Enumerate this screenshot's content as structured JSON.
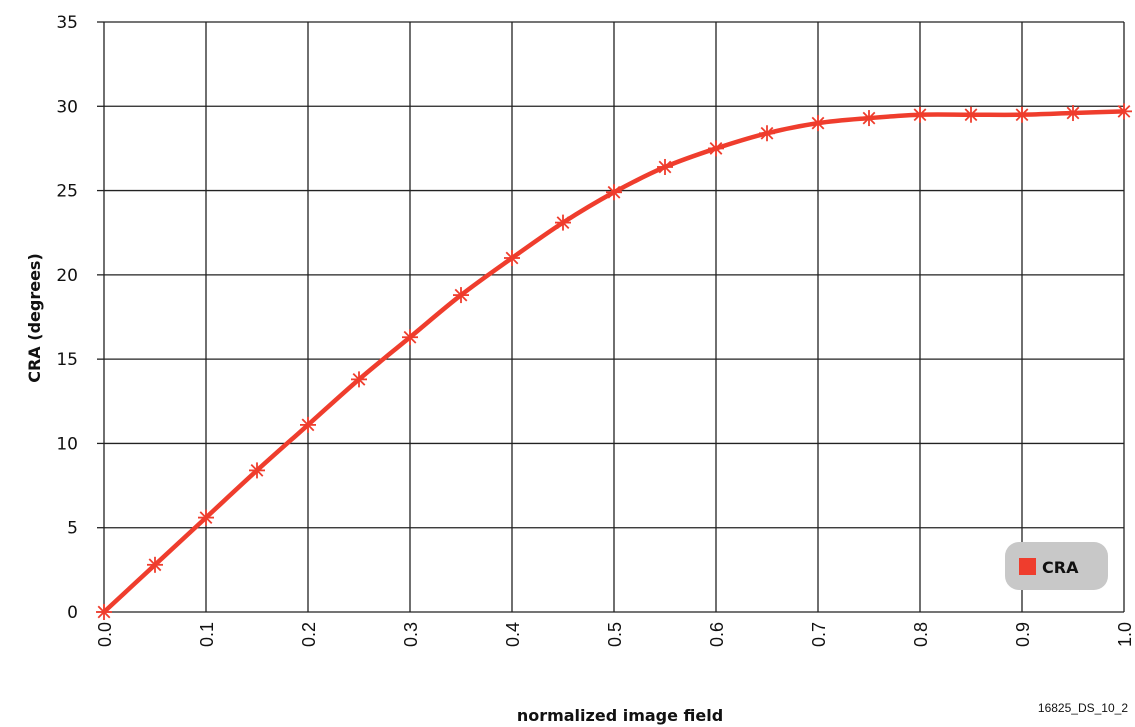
{
  "chart_data": {
    "type": "line",
    "xlabel": "normalized image field",
    "ylabel": "CRA (degrees)",
    "xlim": [
      0,
      1.0
    ],
    "ylim": [
      0,
      35
    ],
    "x_ticks": [
      "0.0",
      "0.1",
      "0.2",
      "0.3",
      "0.4",
      "0.5",
      "0.6",
      "0.7",
      "0.8",
      "0.9",
      "1.0"
    ],
    "y_ticks": [
      "0",
      "5",
      "10",
      "15",
      "20",
      "25",
      "30",
      "35"
    ],
    "grid": true,
    "legend_position": "bottom-right",
    "series": [
      {
        "name": "CRA",
        "color": "#ef3d2d",
        "marker": "asterisk",
        "x": [
          0.0,
          0.05,
          0.1,
          0.15,
          0.2,
          0.25,
          0.3,
          0.35,
          0.4,
          0.45,
          0.5,
          0.55,
          0.6,
          0.65,
          0.7,
          0.75,
          0.8,
          0.85,
          0.9,
          0.95,
          1.0
        ],
        "y": [
          0.0,
          2.8,
          5.6,
          8.4,
          11.1,
          13.8,
          16.3,
          18.8,
          21.0,
          23.1,
          24.9,
          26.4,
          27.5,
          28.4,
          29.0,
          29.3,
          29.5,
          29.5,
          29.5,
          29.6,
          29.7
        ]
      }
    ]
  },
  "footnote": "16825_DS_10_2"
}
